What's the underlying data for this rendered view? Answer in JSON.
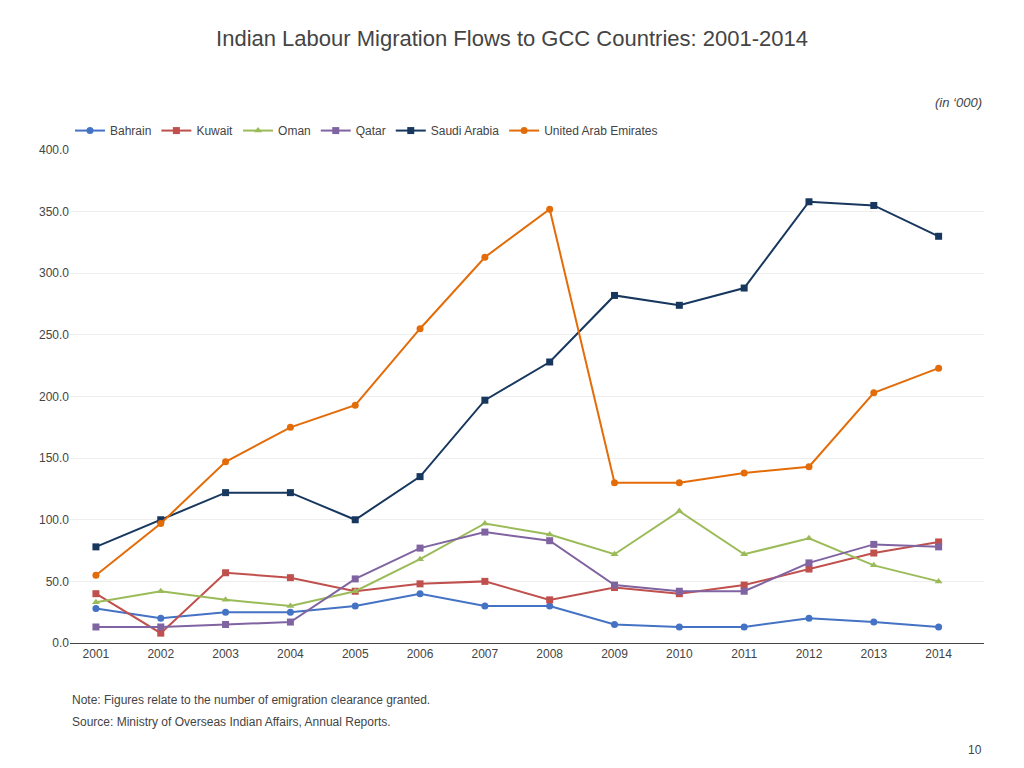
{
  "chart_data": {
    "type": "line",
    "title": "Indian Labour Migration Flows to GCC Countries: 2001-2014",
    "subtitle": "(in ‘000)",
    "annotations": [
      "Note: Figures relate to the number of emigration clearance granted.",
      "Source: Ministry of Overseas Indian Affairs, Annual Reports.",
      "10"
    ],
    "x": [
      2001,
      2002,
      2003,
      2004,
      2005,
      2006,
      2007,
      2008,
      2009,
      2010,
      2011,
      2012,
      2013,
      2014
    ],
    "series": [
      {
        "name": "Bahrain",
        "color": "#4472C4",
        "marker": "circle",
        "values": [
          28,
          20,
          25,
          25,
          30,
          40,
          30,
          30,
          15,
          13,
          13,
          20,
          17,
          13
        ]
      },
      {
        "name": "Kuwait",
        "color": "#C0504D",
        "marker": "square",
        "values": [
          40,
          8,
          57,
          53,
          42,
          48,
          50,
          35,
          45,
          40,
          47,
          60,
          73,
          82
        ]
      },
      {
        "name": "Oman",
        "color": "#9BBB59",
        "marker": "triangle-up",
        "values": [
          33,
          42,
          35,
          30,
          42,
          68,
          97,
          88,
          72,
          107,
          72,
          85,
          63,
          50
        ]
      },
      {
        "name": "Qatar",
        "color": "#8064A2",
        "marker": "square",
        "values": [
          13,
          13,
          15,
          17,
          52,
          77,
          90,
          83,
          47,
          42,
          42,
          65,
          80,
          78
        ]
      },
      {
        "name": "Saudi Arabia",
        "color": "#17375E",
        "marker": "square",
        "values": [
          78,
          100,
          122,
          122,
          100,
          135,
          197,
          228,
          282,
          274,
          288,
          358,
          355,
          330
        ]
      },
      {
        "name": "United Arab Emirates",
        "color": "#E36C09",
        "marker": "circle",
        "values": [
          55,
          97,
          147,
          175,
          193,
          255,
          313,
          352,
          130,
          130,
          138,
          143,
          203,
          223
        ]
      }
    ],
    "xlim": [
      2000.6,
      2014.7
    ],
    "xticks": [
      2001,
      2002,
      2003,
      2004,
      2005,
      2006,
      2007,
      2008,
      2009,
      2010,
      2011,
      2012,
      2013,
      2014
    ],
    "ylim": [
      0,
      400
    ],
    "yticks": [
      {
        "value": 0,
        "label": "0.0"
      },
      {
        "value": 50,
        "label": "50.0"
      },
      {
        "value": 100,
        "label": "100.0"
      },
      {
        "value": 150,
        "label": "150.0"
      },
      {
        "value": 200,
        "label": "200.0"
      },
      {
        "value": 250,
        "label": "250.0"
      },
      {
        "value": 300,
        "label": "300.0"
      },
      {
        "value": 350,
        "label": "350.0"
      },
      {
        "value": 400,
        "label": "400.0"
      }
    ],
    "grid": "y",
    "legend": "top"
  }
}
